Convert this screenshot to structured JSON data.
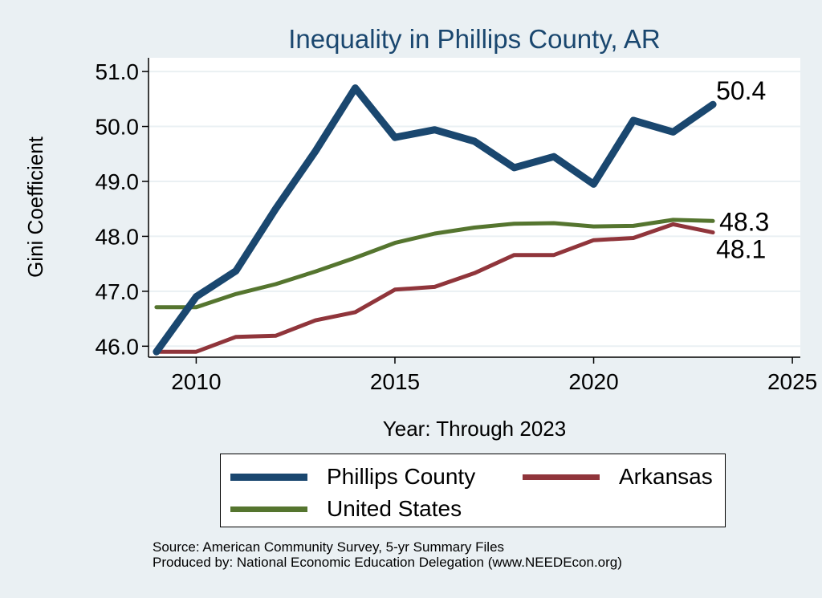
{
  "chart_data": {
    "type": "line",
    "title": "Inequality in Phillips County, AR",
    "xlabel": "Year: Through 2023",
    "ylabel": "Gini Coefficient",
    "xlim": [
      2008.8,
      2025.2
    ],
    "ylim": [
      45.8,
      51.25
    ],
    "xticks": [
      2010,
      2015,
      2020,
      2025
    ],
    "yticks": [
      46.0,
      47.0,
      48.0,
      49.0,
      50.0,
      51.0
    ],
    "ytick_labels": [
      "46.0",
      "47.0",
      "48.0",
      "49.0",
      "50.0",
      "51.0"
    ],
    "x": [
      2009,
      2010,
      2011,
      2012,
      2013,
      2014,
      2015,
      2016,
      2017,
      2018,
      2019,
      2020,
      2021,
      2022,
      2023
    ],
    "series": [
      {
        "name": "Phillips County",
        "color": "#1a476f",
        "width": 9,
        "values": [
          45.9,
          46.9,
          47.37,
          48.5,
          49.55,
          50.7,
          49.8,
          49.94,
          49.73,
          49.25,
          49.45,
          48.95,
          50.11,
          49.9,
          50.4
        ],
        "end_label": "50.4"
      },
      {
        "name": "Arkansas",
        "color": "#90353b",
        "width": 5,
        "values": [
          45.9,
          45.9,
          46.17,
          46.19,
          46.47,
          46.62,
          47.03,
          47.08,
          47.33,
          47.66,
          47.66,
          47.93,
          47.97,
          48.22,
          48.07
        ],
        "end_label": "48.1"
      },
      {
        "name": "United States",
        "color": "#55752f",
        "width": 5,
        "values": [
          46.71,
          46.71,
          46.95,
          47.13,
          47.36,
          47.61,
          47.88,
          48.05,
          48.16,
          48.23,
          48.24,
          48.18,
          48.19,
          48.3,
          48.28
        ],
        "end_label": "48.3"
      }
    ],
    "legend": {
      "placement": "bottom",
      "order": [
        "Phillips County",
        "Arkansas",
        "United States"
      ]
    },
    "source_lines": [
      "Source: American Community Survey, 5-yr Summary Files",
      "Produced by: National Economic Education Delegation (www.NEEDEcon.org)"
    ]
  }
}
